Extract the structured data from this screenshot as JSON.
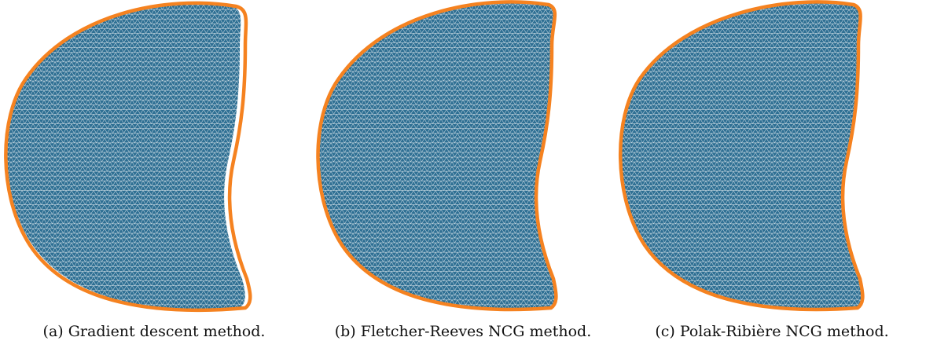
{
  "colors": {
    "mesh_fill": "#2e6f93",
    "mesh_lines": "#ffffff",
    "boundary": "#f58220"
  },
  "panels": [
    {
      "caption": "(a) Gradient descent method."
    },
    {
      "caption": "(b) Fletcher-Reeves NCG method."
    },
    {
      "caption": "(c) Polak-Ribière NCG method."
    }
  ]
}
